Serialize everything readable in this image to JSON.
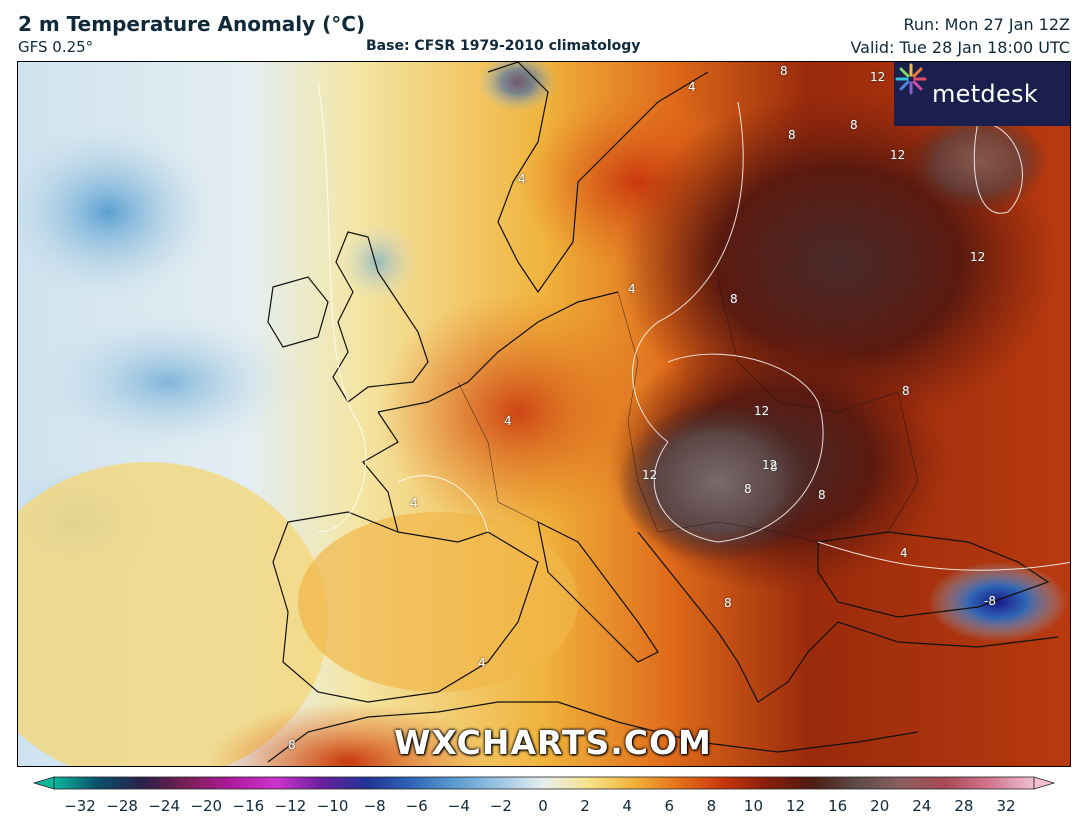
{
  "header": {
    "title": "2 m Temperature Anomaly (°C)",
    "model": "GFS 0.25°",
    "base": "Base: CFSR 1979-2010 climatology",
    "run": "Run: Mon 27 Jan 12Z",
    "valid": "Valid: Tue 28 Jan 18:00 UTC"
  },
  "logo": {
    "text": "metdesk",
    "icon": "metdesk-burst-icon"
  },
  "watermark": "WXCHARTS.COM",
  "contour_labels": [
    "8",
    "12",
    "4",
    "8",
    "12",
    "8",
    "8",
    "12",
    "12",
    "8",
    "4",
    "4",
    "4",
    "8",
    "12",
    "12",
    "8",
    "8",
    "4",
    "8",
    "4",
    "-8",
    "8",
    "4"
  ],
  "colorbar": {
    "ticks": [
      "−32",
      "−28",
      "−24",
      "−20",
      "−16",
      "−12",
      "−10",
      "−8",
      "−6",
      "−4",
      "−2",
      "0",
      "2",
      "4",
      "6",
      "8",
      "10",
      "12",
      "16",
      "20",
      "24",
      "28",
      "32"
    ],
    "colors": [
      "#0fb69c",
      "#0a4f6a",
      "#2b1f4a",
      "#7a1f55",
      "#b01aa0",
      "#cc33cc",
      "#6a1e9e",
      "#233397",
      "#2e63b5",
      "#5a9bd0",
      "#9cc6e4",
      "#e8eef0",
      "#f7e38a",
      "#f1b23a",
      "#e5731c",
      "#c9370e",
      "#8a1f0a",
      "#4e1a12",
      "#5d4a48",
      "#8a5e5e",
      "#a84a55",
      "#d0768e",
      "#f2bfd2"
    ]
  }
}
